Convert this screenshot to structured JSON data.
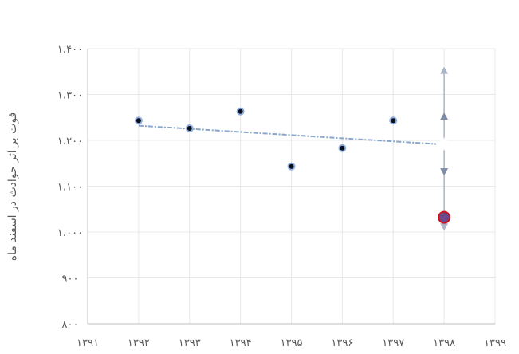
{
  "chart_data": {
    "type": "scatter",
    "ylabel": "فوت بر اثر حوادث در اسفند ماه",
    "x_tick_labels": [
      "۱۳۹۱",
      "۱۳۹۲",
      "۱۳۹۳",
      "۱۳۹۴",
      "۱۳۹۵",
      "۱۳۹۶",
      "۱۳۹۷",
      "۱۳۹۸",
      "۱۳۹۹"
    ],
    "x_ticks": [
      1391,
      1392,
      1393,
      1394,
      1395,
      1396,
      1397,
      1398,
      1399
    ],
    "y_tick_labels": [
      "۸۰۰",
      "۹۰۰",
      "۱،۰۰۰",
      "۱،۱۰۰",
      "۱،۲۰۰",
      "۱،۳۰۰",
      "۱،۴۰۰"
    ],
    "y_ticks": [
      800,
      900,
      1000,
      1100,
      1200,
      1300,
      1400
    ],
    "xlim": [
      1391,
      1399
    ],
    "ylim": [
      800,
      1400
    ],
    "grid": true,
    "points": [
      {
        "x": 1392,
        "y": 1243
      },
      {
        "x": 1393,
        "y": 1226
      },
      {
        "x": 1394,
        "y": 1263
      },
      {
        "x": 1395,
        "y": 1143
      },
      {
        "x": 1396,
        "y": 1183
      },
      {
        "x": 1397,
        "y": 1243
      }
    ],
    "highlight_point": {
      "x": 1398,
      "y": 1032
    },
    "trend_line": {
      "x": [
        1392,
        1398
      ],
      "y": [
        1232,
        1192
      ]
    },
    "markers_1398": {
      "upper_outer": 1352,
      "upper_inner": 1252,
      "center": 1192,
      "lower_inner": 1132,
      "lower_outer": 1012
    },
    "colors": {
      "point_fill": "#0a0f1e",
      "point_edge": "#8faedc",
      "trend": "#8aa6c8",
      "highlight_fill": "#6b4a8a",
      "highlight_edge": "#d0101a",
      "arrow": "#7f8ca8",
      "arrow_light": "#a9b4c8",
      "grid": "#e8e8e8",
      "axis": "#bfbfbf"
    }
  }
}
